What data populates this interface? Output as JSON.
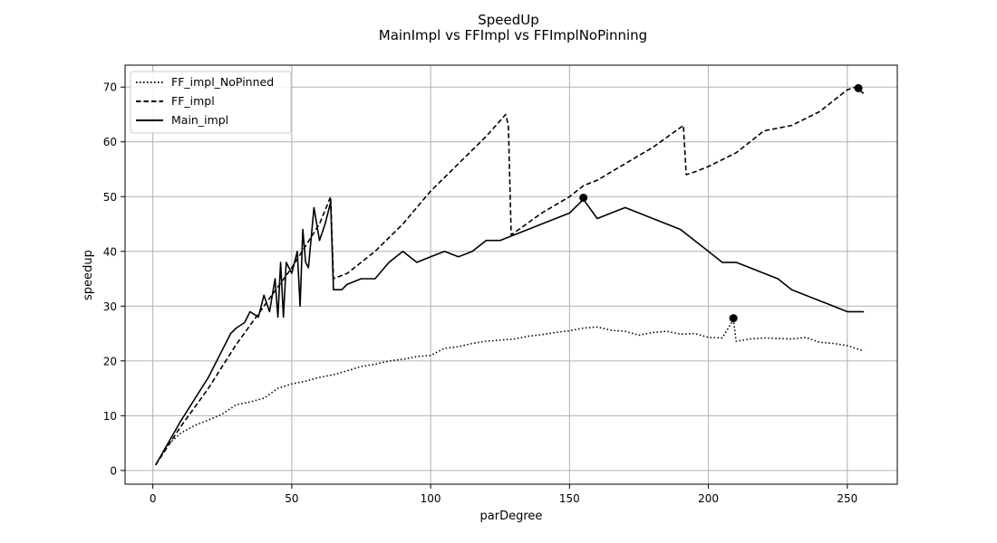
{
  "chart_data": {
    "type": "line",
    "title": "SpeedUp",
    "subtitle": "MainImpl vs FFImpl vs FFImplNoPinning",
    "xlabel": "parDegree",
    "ylabel": "speedup",
    "xlim": [
      -10,
      268
    ],
    "ylim": [
      -2.5,
      74
    ],
    "xticks": [
      0,
      50,
      100,
      150,
      200,
      250
    ],
    "yticks": [
      0,
      10,
      20,
      30,
      40,
      50,
      60,
      70
    ],
    "grid": true,
    "legend_position": "top-left",
    "series": [
      {
        "name": "FF_impl_NoPinned",
        "style": "dotted",
        "color": "#000000",
        "x": [
          1,
          5,
          10,
          15,
          20,
          25,
          30,
          35,
          40,
          45,
          50,
          55,
          60,
          65,
          70,
          75,
          80,
          85,
          90,
          95,
          100,
          105,
          110,
          115,
          120,
          125,
          130,
          135,
          140,
          145,
          150,
          155,
          160,
          165,
          170,
          175,
          180,
          185,
          190,
          195,
          200,
          205,
          209,
          210,
          215,
          220,
          225,
          230,
          235,
          240,
          245,
          250,
          256
        ],
        "y": [
          1,
          4.5,
          6.8,
          8.2,
          9.2,
          10.3,
          12,
          12.5,
          13.2,
          15,
          15.8,
          16.3,
          17,
          17.5,
          18.2,
          19,
          19.4,
          20,
          20.3,
          20.8,
          21,
          22.3,
          22.6,
          23.2,
          23.6,
          23.8,
          24,
          24.5,
          24.8,
          25.2,
          25.5,
          26,
          26.2,
          25.6,
          25.4,
          24.7,
          25.2,
          25.4,
          24.9,
          25,
          24.3,
          24.2,
          27.5,
          23.6,
          24,
          24.2,
          24.1,
          24,
          24.3,
          23.4,
          23.2,
          22.8,
          21.8
        ]
      },
      {
        "name": "FF_impl",
        "style": "dashed",
        "color": "#000000",
        "x": [
          1,
          10,
          20,
          30,
          40,
          50,
          60,
          64,
          65,
          70,
          80,
          90,
          100,
          110,
          120,
          127,
          128,
          129,
          140,
          150,
          155,
          160,
          170,
          180,
          191,
          192,
          195,
          200,
          210,
          220,
          230,
          240,
          250,
          253,
          256
        ],
        "y": [
          1,
          8,
          15,
          23,
          30,
          37,
          45,
          50,
          35,
          36,
          40,
          45,
          51,
          56,
          61,
          65,
          63,
          43,
          47,
          50,
          52,
          53,
          56,
          59,
          63,
          54,
          54.5,
          55.5,
          58,
          62,
          63,
          65.5,
          69.5,
          70,
          68.8
        ]
      },
      {
        "name": "Main_impl",
        "style": "solid",
        "color": "#000000",
        "x": [
          1,
          10,
          20,
          25,
          28,
          30,
          33,
          35,
          38,
          40,
          42,
          44,
          45,
          46,
          47,
          48,
          50,
          52,
          53,
          54,
          55,
          56,
          58,
          60,
          62,
          64,
          65,
          68,
          70,
          75,
          80,
          85,
          90,
          95,
          100,
          105,
          110,
          115,
          120,
          125,
          130,
          135,
          140,
          145,
          150,
          155,
          160,
          165,
          170,
          175,
          180,
          185,
          190,
          195,
          200,
          205,
          210,
          215,
          220,
          225,
          230,
          235,
          240,
          245,
          250,
          256
        ],
        "y": [
          1,
          9,
          17,
          22,
          25,
          26,
          27,
          29,
          28,
          32,
          29,
          35,
          28,
          38,
          28,
          38,
          36,
          40,
          30,
          44,
          38,
          37,
          48,
          42,
          45,
          49,
          33,
          33,
          34,
          35,
          35,
          38,
          40,
          38,
          39,
          40,
          39,
          40,
          42,
          42,
          43,
          44,
          45,
          46,
          47,
          49.5,
          46,
          47,
          48,
          47,
          46,
          45,
          44,
          42,
          40,
          38,
          38,
          37,
          36,
          35,
          33,
          32,
          31,
          30,
          29,
          29
        ]
      }
    ],
    "markers": [
      {
        "x": 209,
        "y": 27.8
      },
      {
        "x": 155,
        "y": 49.8
      },
      {
        "x": 254,
        "y": 69.8
      }
    ]
  }
}
